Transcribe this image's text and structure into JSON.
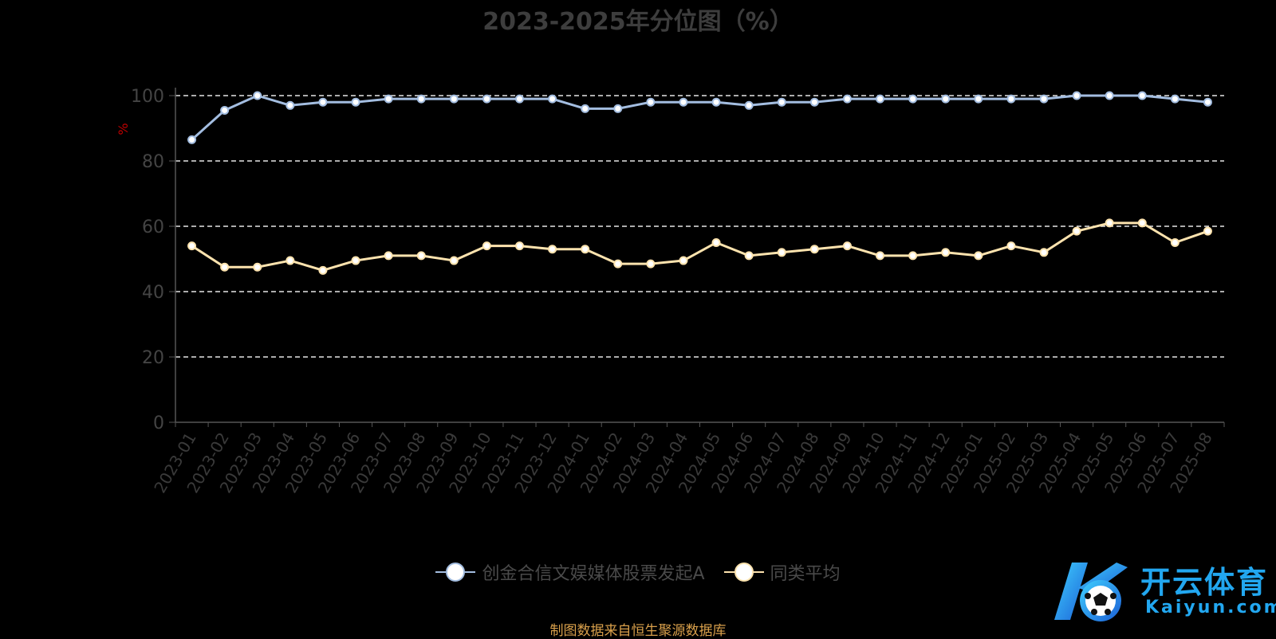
{
  "chart_data": {
    "type": "line",
    "title": "2023-2025年分位图（%）",
    "ylabel": "%",
    "xlabel": "",
    "ylim": [
      0,
      100
    ],
    "yticks": [
      0,
      20,
      40,
      60,
      80,
      100
    ],
    "grid": true,
    "legend_position": "bottom",
    "categories": [
      "2023-01",
      "2023-02",
      "2023-03",
      "2023-04",
      "2023-05",
      "2023-06",
      "2023-07",
      "2023-08",
      "2023-09",
      "2023-10",
      "2023-11",
      "2023-12",
      "2024-01",
      "2024-02",
      "2024-03",
      "2024-04",
      "2024-05",
      "2024-06",
      "2024-07",
      "2024-08",
      "2024-09",
      "2024-10",
      "2024-11",
      "2024-12",
      "2025-01",
      "2025-02",
      "2025-03",
      "2025-04",
      "2025-05",
      "2025-06",
      "2025-07",
      "2025-08"
    ],
    "series": [
      {
        "name": "创金合信文娱媒体股票发起A",
        "color": "#a3bde0",
        "values": [
          86.5,
          95.5,
          100,
          97,
          98,
          98,
          99,
          99,
          99,
          99,
          99,
          99,
          96,
          96,
          98,
          98,
          98,
          97,
          98,
          98,
          99,
          99,
          99,
          99,
          99,
          99,
          99,
          100,
          100,
          100,
          99,
          98
        ]
      },
      {
        "name": "同类平均",
        "color": "#fde3ae",
        "values": [
          54,
          47.5,
          47.5,
          49.5,
          46.5,
          49.5,
          51,
          51,
          49.5,
          54,
          54,
          53,
          53,
          48.5,
          48.5,
          49.5,
          55,
          51,
          52,
          53,
          54,
          51,
          51,
          52,
          51,
          54,
          52,
          58.5,
          61,
          61,
          55,
          58.5
        ]
      }
    ],
    "source": "制图数据来自恒生聚源数据库"
  },
  "watermark": {
    "text": "开云体育",
    "sub": "Kaiyun.com"
  }
}
